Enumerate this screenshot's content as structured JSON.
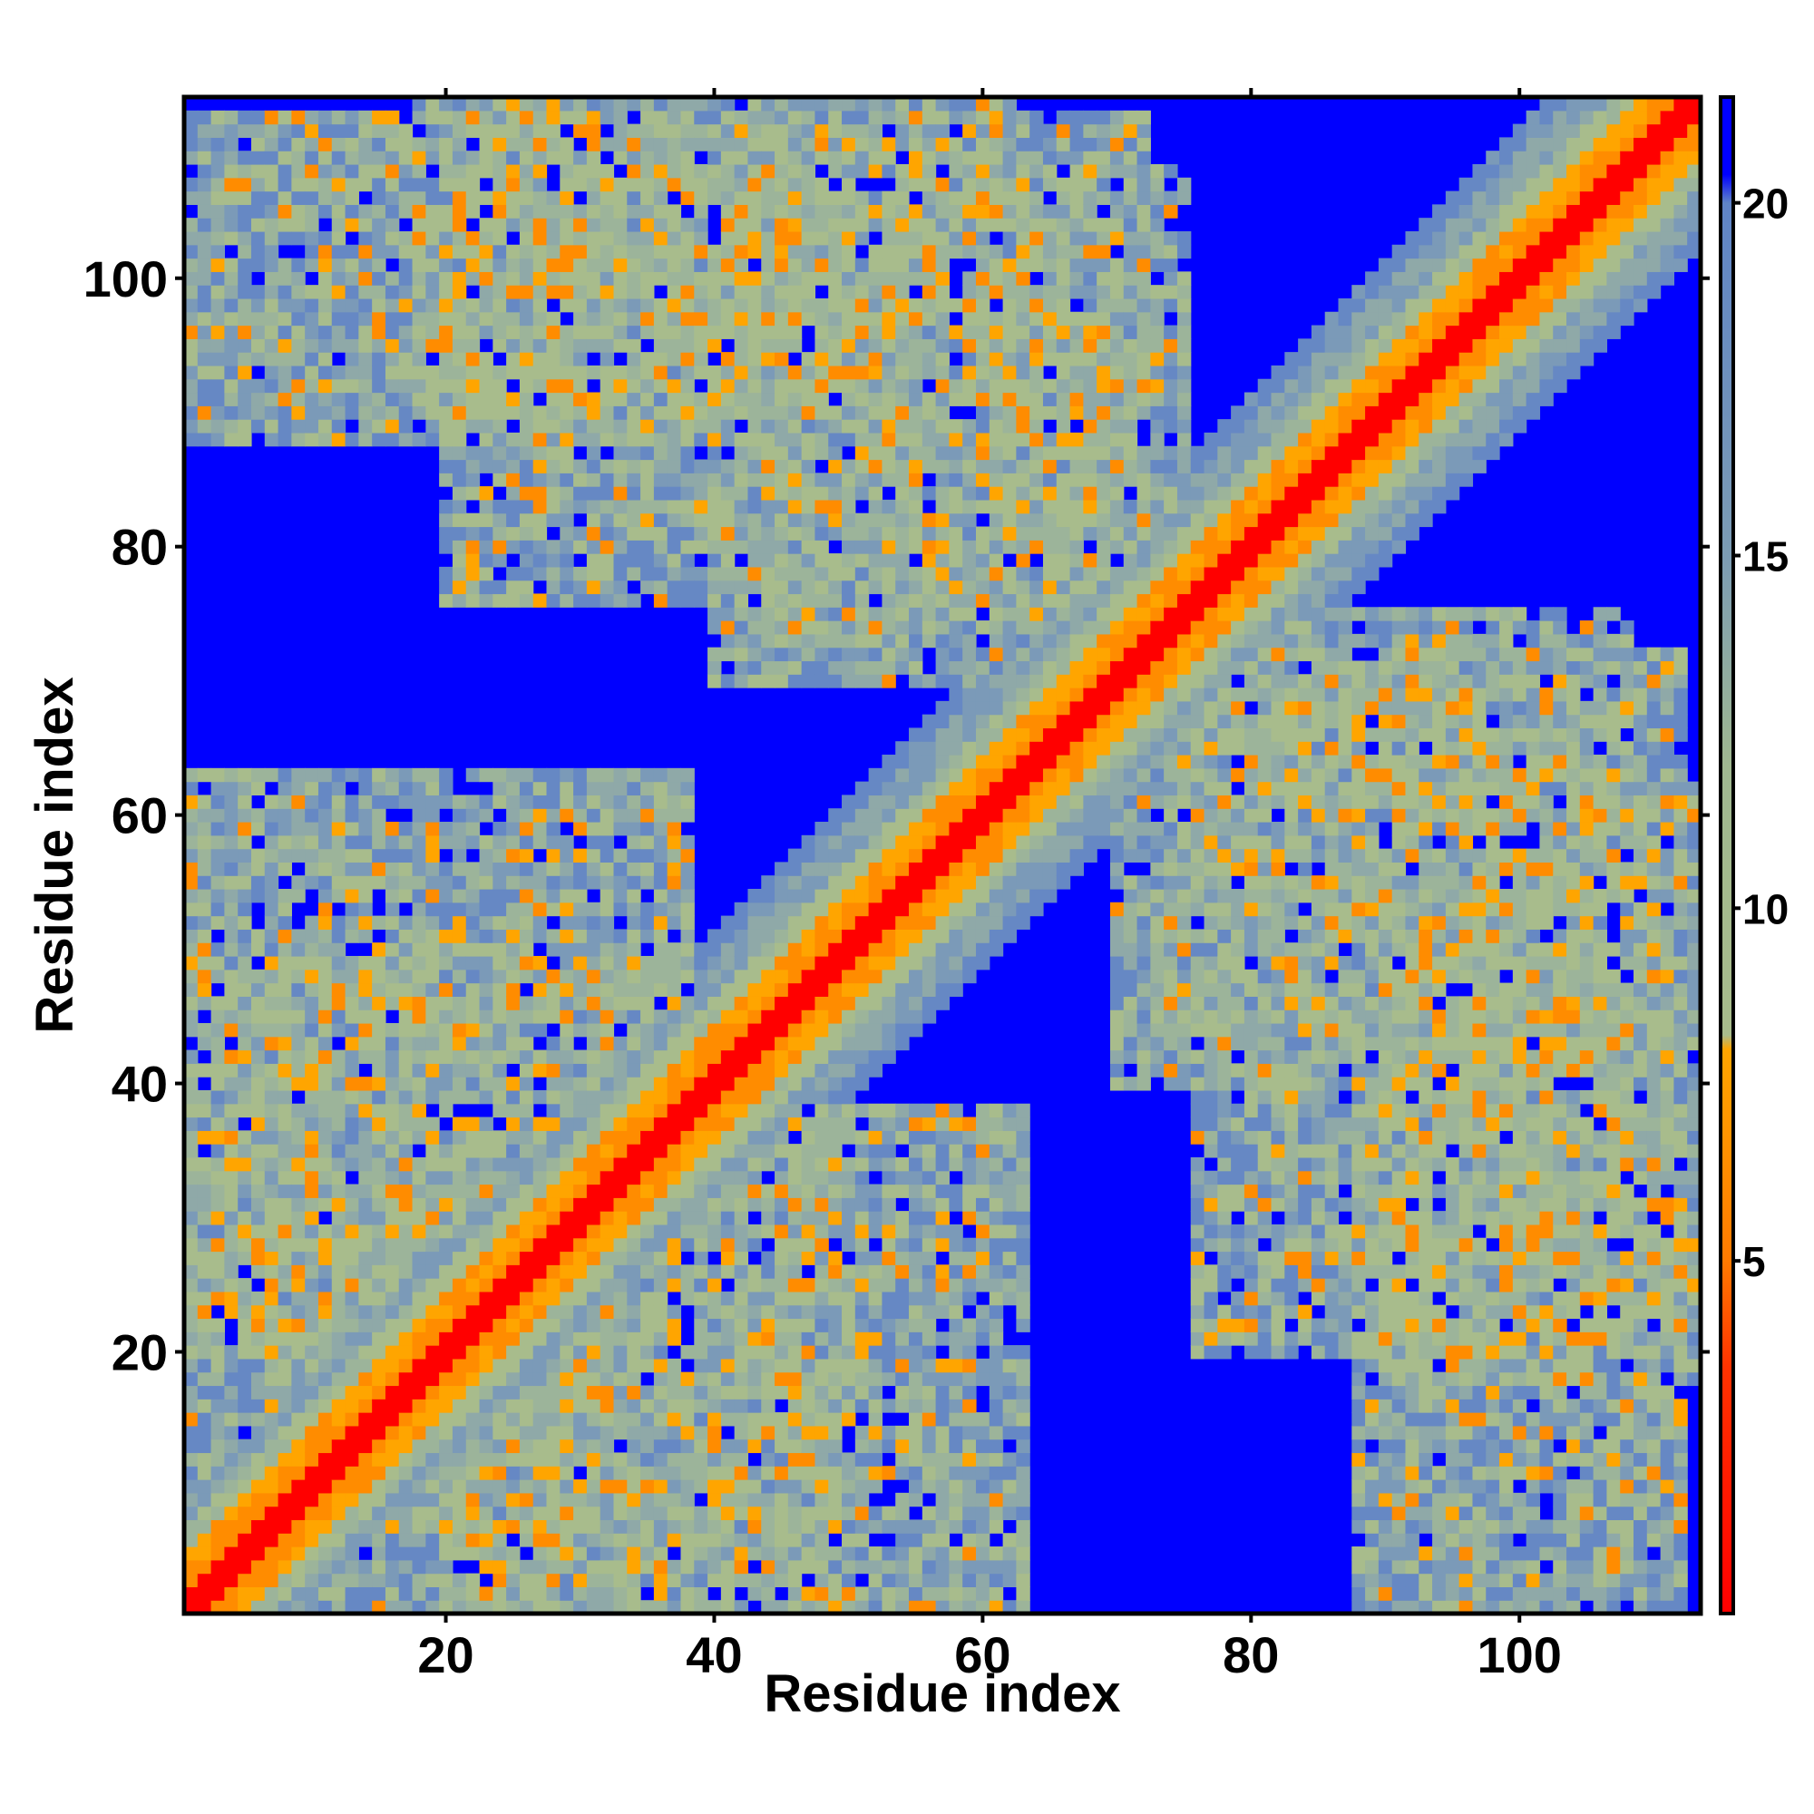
{
  "chart_data": {
    "type": "heatmap",
    "title": "",
    "xlabel": "Residue index",
    "ylabel": "Residue index",
    "xlim": [
      1,
      113
    ],
    "ylim": [
      1,
      113
    ],
    "x_ticks": [
      20,
      40,
      60,
      80,
      100
    ],
    "y_ticks": [
      20,
      40,
      60,
      80,
      100
    ],
    "x_tick_labels": [
      "20",
      "40",
      "60",
      "80",
      "100"
    ],
    "y_tick_labels": [
      "20",
      "40",
      "60",
      "80",
      "100"
    ],
    "grid": false,
    "colorbar": {
      "placement": "right",
      "ticks": [
        5,
        10,
        15,
        20
      ],
      "tick_labels": [
        "5",
        "10",
        "15",
        "20"
      ],
      "range": [
        0,
        21.5
      ],
      "stops": [
        {
          "value": 0,
          "color": "#ff0000"
        },
        {
          "value": 3.5,
          "color": "#ff3300"
        },
        {
          "value": 5,
          "color": "#ff7a00"
        },
        {
          "value": 8,
          "color": "#ffa500"
        },
        {
          "value": 8.2,
          "color": "#a8bc8c"
        },
        {
          "value": 12,
          "color": "#a0b890"
        },
        {
          "value": 15,
          "color": "#7c9cb4"
        },
        {
          "value": 20,
          "color": "#5f84c6"
        },
        {
          "value": 20.4,
          "color": "#0000ff"
        },
        {
          "value": 21.5,
          "color": "#0000ff"
        }
      ]
    },
    "cell_value_scale": "distance",
    "far_color": "#0000ff",
    "diagonal_bands": [
      {
        "from": 1,
        "to": 113,
        "description": "main diagonal"
      }
    ],
    "contact_patches": [
      {
        "x": [
          1,
          38
        ],
        "y": [
          20,
          63
        ],
        "mirror": true
      },
      {
        "x": [
          1,
          50
        ],
        "y": [
          1,
          38
        ],
        "mirror": true
      },
      {
        "x": [
          18,
          62
        ],
        "y": [
          90,
          113
        ],
        "mirror": true
      },
      {
        "x": [
          40,
          75
        ],
        "y": [
          70,
          108
        ],
        "mirror": true
      },
      {
        "x": [
          76,
          112
        ],
        "y": [
          20,
          72
        ],
        "mirror": true
      },
      {
        "x": [
          88,
          112
        ],
        "y": [
          1,
          38
        ],
        "mirror": true
      }
    ]
  }
}
